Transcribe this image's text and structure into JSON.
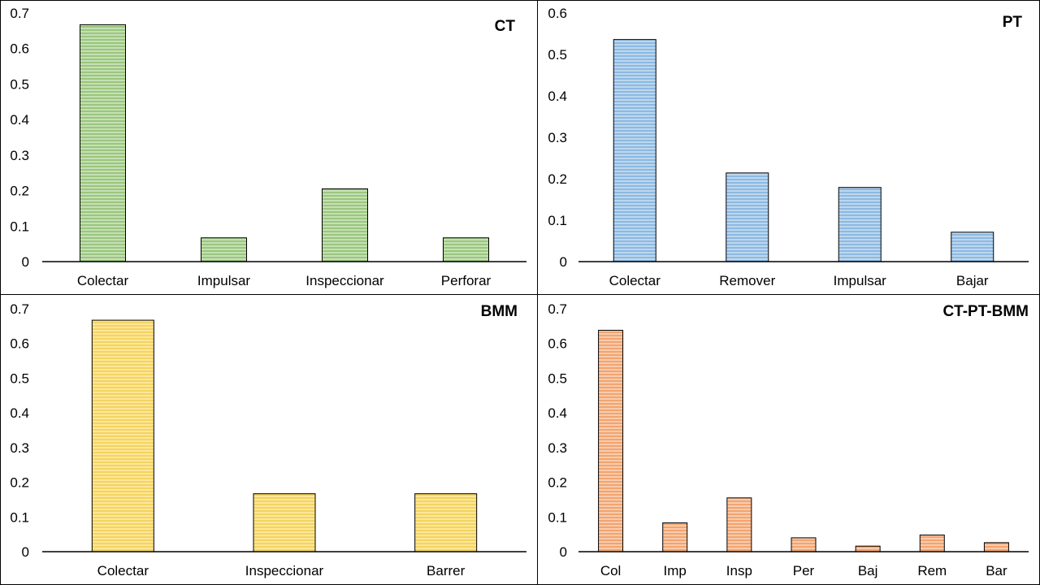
{
  "chart_data": [
    {
      "type": "bar",
      "title": "CT",
      "categories": [
        "Colectar",
        "Impulsar",
        "Inspeccionar",
        "Perforar"
      ],
      "values": [
        0.667,
        0.067,
        0.205,
        0.067
      ],
      "ylim": [
        0,
        0.7
      ],
      "yticks": [
        "0",
        "0.1",
        "0.2",
        "0.3",
        "0.4",
        "0.5",
        "0.6",
        "0.7"
      ],
      "grid": false,
      "color": "#A9D18E"
    },
    {
      "type": "bar",
      "title": "PT",
      "categories": [
        "Colectar",
        "Remover",
        "Impulsar",
        "Bajar"
      ],
      "values": [
        0.536,
        0.214,
        0.179,
        0.071
      ],
      "ylim": [
        0,
        0.6
      ],
      "yticks": [
        "0",
        "0.1",
        "0.2",
        "0.3",
        "0.4",
        "0.5",
        "0.6"
      ],
      "grid": false,
      "color": "#9DC3E6"
    },
    {
      "type": "bar",
      "title": "BMM",
      "categories": [
        "Colectar",
        "Inspeccionar",
        "Barrer"
      ],
      "values": [
        0.667,
        0.167,
        0.167
      ],
      "ylim": [
        0,
        0.7
      ],
      "yticks": [
        "0",
        "0.1",
        "0.2",
        "0.3",
        "0.4",
        "0.5",
        "0.6",
        "0.7"
      ],
      "grid": false,
      "color": "#FFD966"
    },
    {
      "type": "bar",
      "title": "CT-PT-BMM",
      "categories": [
        "Col",
        "Imp",
        "Insp",
        "Per",
        "Baj",
        "Rem",
        "Bar"
      ],
      "values": [
        0.638,
        0.083,
        0.155,
        0.04,
        0.016,
        0.048,
        0.026
      ],
      "ylim": [
        0,
        0.7
      ],
      "yticks": [
        "0",
        "0.1",
        "0.2",
        "0.3",
        "0.4",
        "0.5",
        "0.6",
        "0.7"
      ],
      "grid": false,
      "color": "#F4B183"
    }
  ]
}
